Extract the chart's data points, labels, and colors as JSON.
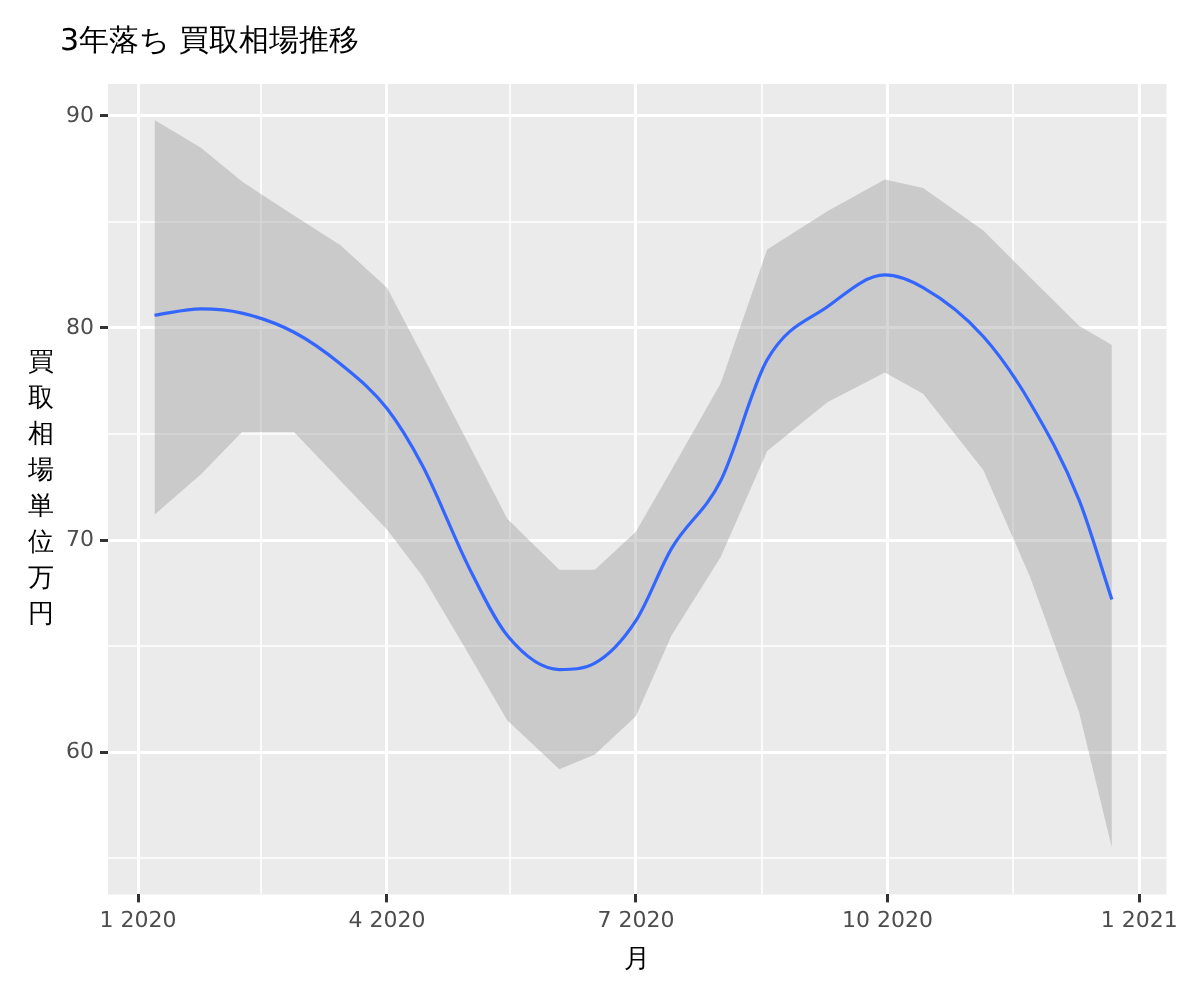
{
  "chart_data": {
    "type": "line",
    "title": "3年落ち 買取相場推移",
    "xlabel": "月",
    "ylabel": "買取相場単位万円",
    "x": [
      "2020-01-07",
      "2020-01-24",
      "2020-02-08",
      "2020-02-27",
      "2020-03-15",
      "2020-04-01",
      "2020-04-14",
      "2020-05-01",
      "2020-05-15",
      "2020-06-03",
      "2020-06-16",
      "2020-07-01",
      "2020-07-14",
      "2020-08-01",
      "2020-08-18",
      "2020-09-09",
      "2020-09-30",
      "2020-10-14",
      "2020-11-05",
      "2020-11-22",
      "2020-12-10",
      "2020-12-22"
    ],
    "series": [
      {
        "color": "#3366ff",
        "values": [
          80.6,
          80.9,
          80.7,
          79.8,
          78.3,
          76.2,
          73.5,
          68.7,
          65.5,
          63.9,
          64.2,
          66.2,
          69.6,
          72.8,
          78.5,
          81.0,
          82.5,
          81.9,
          79.6,
          76.5,
          71.9,
          67.2
        ],
        "upper": [
          89.8,
          88.5,
          86.9,
          85.3,
          83.9,
          81.9,
          78.7,
          74.5,
          71.0,
          68.6,
          68.6,
          70.4,
          73.3,
          77.4,
          83.7,
          85.5,
          87.0,
          86.6,
          84.6,
          82.4,
          80.1,
          79.2
        ],
        "lower": [
          71.2,
          73.1,
          75.1,
          75.1,
          72.8,
          70.5,
          68.3,
          64.6,
          61.5,
          59.2,
          59.9,
          61.7,
          65.5,
          69.2,
          74.2,
          76.5,
          77.9,
          76.9,
          73.3,
          68.3,
          61.9,
          55.5
        ]
      }
    ],
    "xlim": [
      "2019-12-21",
      "2021-01-11"
    ],
    "xticks": [
      {
        "value": "2020-01-01",
        "label": "1 2020"
      },
      {
        "value": "2020-02-15",
        "label": null
      },
      {
        "value": "2020-04-01",
        "label": "4 2020"
      },
      {
        "value": "2020-05-16",
        "label": null
      },
      {
        "value": "2020-07-01",
        "label": "7 2020"
      },
      {
        "value": "2020-08-16",
        "label": null
      },
      {
        "value": "2020-10-01",
        "label": "10 2020"
      },
      {
        "value": "2020-11-16",
        "label": null
      },
      {
        "value": "2021-01-01",
        "label": "1 2021"
      }
    ],
    "ylim": [
      53.3,
      91.5
    ],
    "yticks": [
      {
        "value": 55,
        "label": null
      },
      60,
      {
        "value": 65,
        "label": null
      },
      70,
      {
        "value": 75,
        "label": null
      },
      80,
      {
        "value": 85,
        "label": null
      },
      90
    ],
    "grid": true,
    "legend": false,
    "marker": "none",
    "line_style": "solid"
  }
}
